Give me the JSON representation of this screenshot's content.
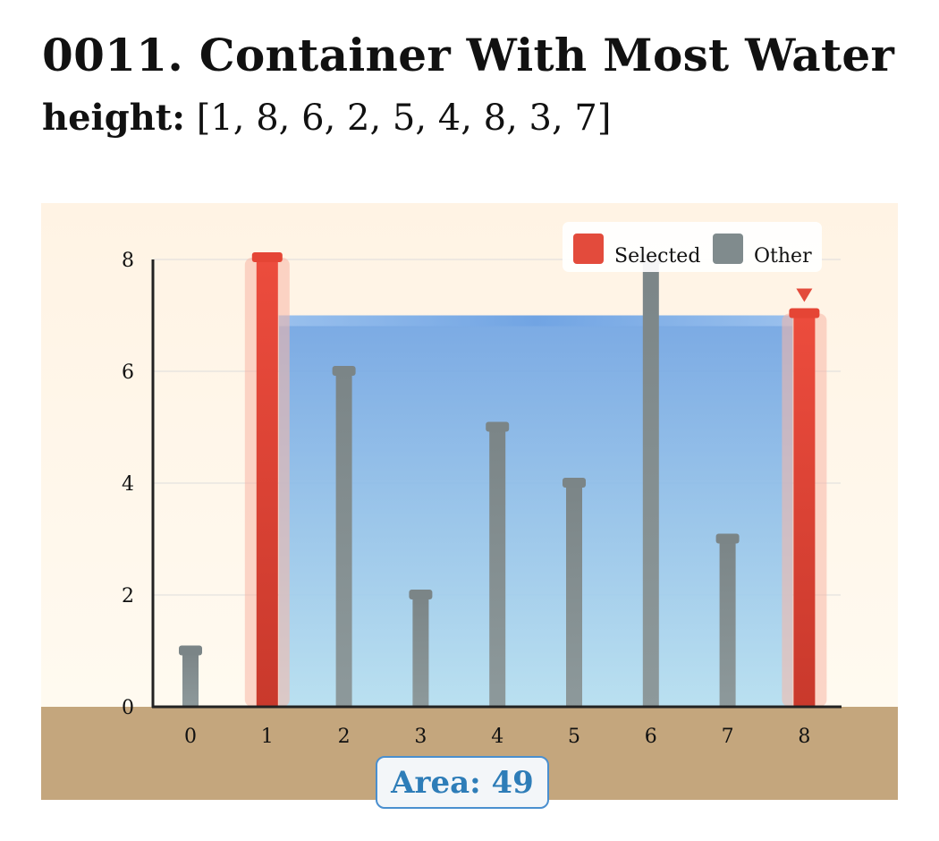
{
  "title": "0011. Container With Most Water",
  "subtitle": {
    "label": "height:",
    "value": "[1, 8, 6, 2, 5, 4, 8, 3, 7]"
  },
  "area_label": "Area: 49",
  "legend": {
    "selected": "Selected",
    "other": "Other"
  },
  "colors": {
    "selected": "#e34b3c",
    "other": "#808b8d",
    "water_top": "#6fa3e3",
    "water_bottom": "#b4def0",
    "background": "#fff6e8",
    "ground": "#c4a67d",
    "axis": "#222222",
    "accent_text": "#2e7db8"
  },
  "chart_data": {
    "type": "bar",
    "categories": [
      "0",
      "1",
      "2",
      "3",
      "4",
      "5",
      "6",
      "7",
      "8"
    ],
    "values": [
      1,
      8,
      6,
      2,
      5,
      4,
      8,
      3,
      7
    ],
    "selected_indices": [
      1,
      8
    ],
    "water_level": 7,
    "yticks": [
      "0",
      "2",
      "4",
      "6",
      "8"
    ],
    "ylim": [
      0,
      8
    ],
    "grid": true,
    "legend_position": "top-right"
  }
}
